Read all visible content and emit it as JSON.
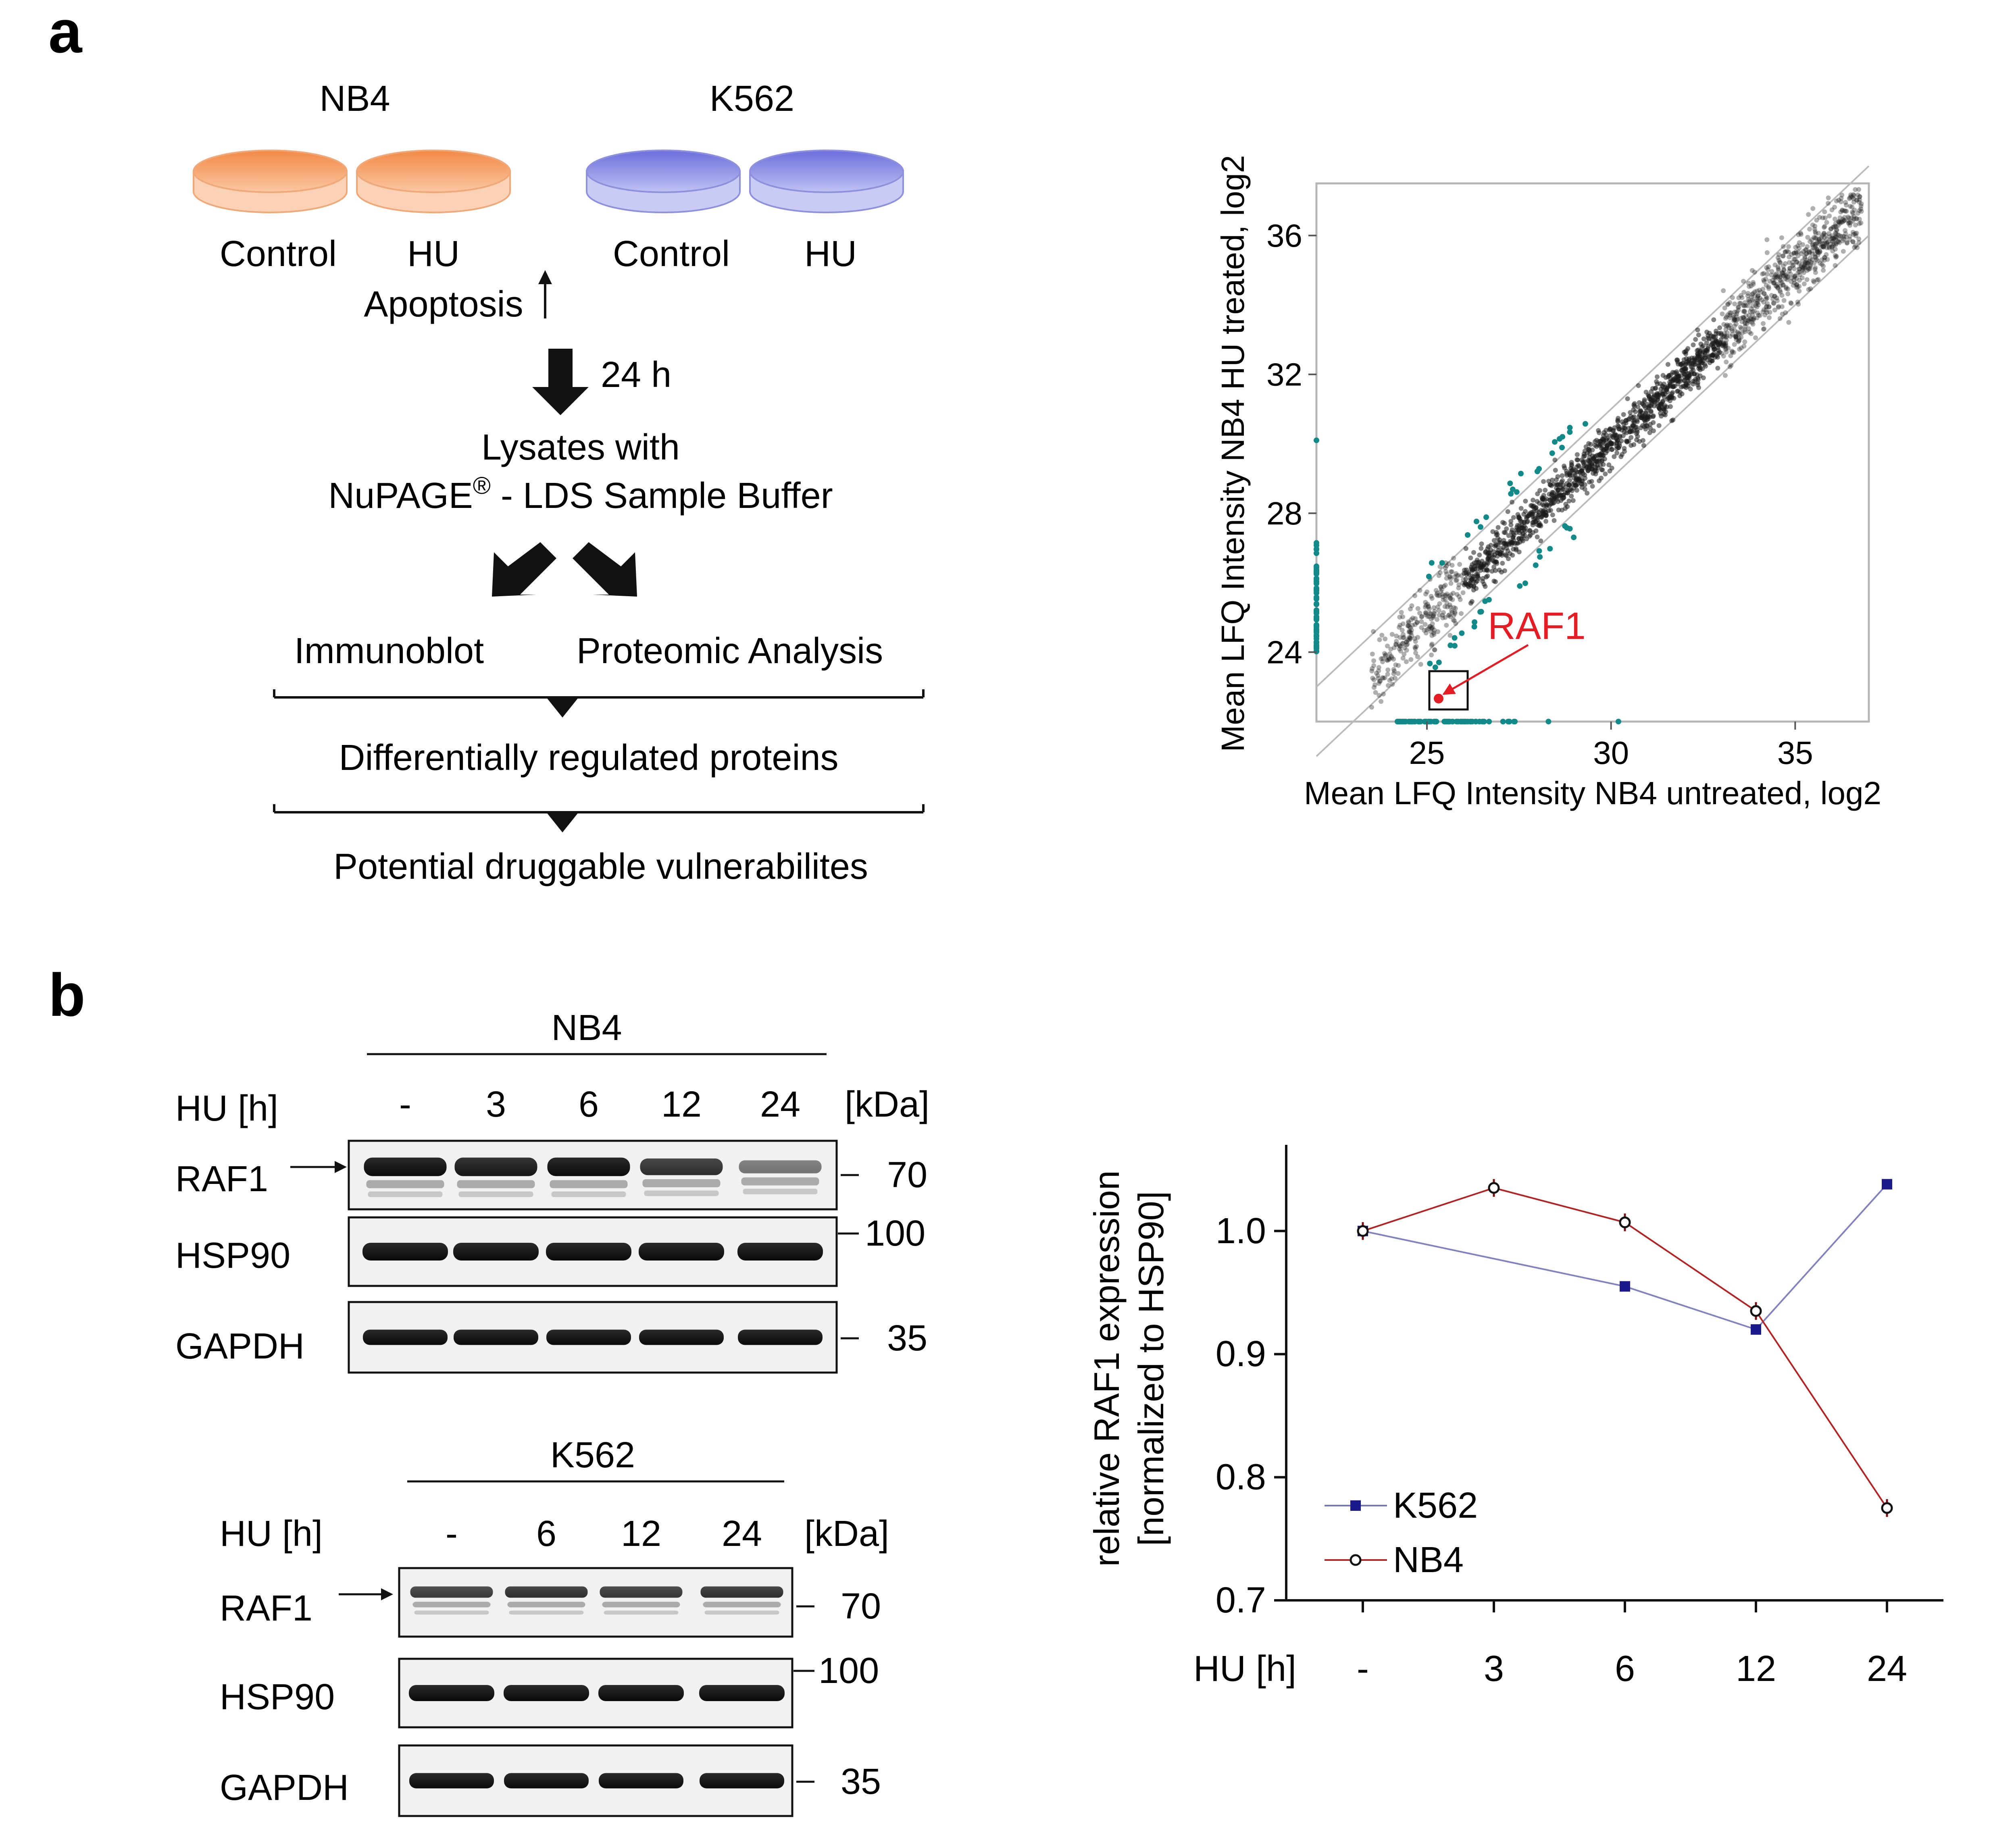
{
  "panel_a": {
    "label": "a",
    "workflow": {
      "cell_lines": [
        "NB4",
        "K562"
      ],
      "conditions": [
        "Control",
        "HU",
        "Control",
        "HU"
      ],
      "apoptosis": "Apoptosis",
      "duration": "24 h",
      "lysates_line1": "Lysates with",
      "lysates_line2": "NuPAGE",
      "lysates_reg": "®",
      "lysates_line2_end": " - LDS Sample Buffer",
      "branch_left": "Immunoblot",
      "branch_right": "Proteomic Analysis",
      "step1": "Differentially regulated proteins",
      "step2": "Potential druggable vulnerabilites"
    },
    "colors": {
      "nb4_dish": "#f59a5e",
      "k562_dish": "#7a7ee0",
      "outlier": "#138a8a",
      "highlight": "#e41c23"
    },
    "scatter": {
      "xlabel": "Mean LFQ Intensity NB4 untreated, log2",
      "ylabel": "Mean LFQ Intensity NB4 HU treated, log2",
      "annotation": "RAF1"
    }
  },
  "panel_b": {
    "label": "b",
    "nb4_blot": {
      "title": "NB4",
      "hu_label": "HU [h]",
      "lanes": [
        "-",
        "3",
        "6",
        "12",
        "24"
      ],
      "kda_label": "[kDa]",
      "rows": [
        {
          "name": "RAF1",
          "kda": "70"
        },
        {
          "name": "HSP90",
          "kda": "100"
        },
        {
          "name": "GAPDH",
          "kda": "35"
        }
      ]
    },
    "k562_blot": {
      "title": "K562",
      "hu_label": "HU [h]",
      "lanes": [
        "-",
        "6",
        "12",
        "24"
      ],
      "kda_label": "[kDa]",
      "rows": [
        {
          "name": "RAF1",
          "kda": "70"
        },
        {
          "name": "HSP90",
          "kda": "100"
        },
        {
          "name": "GAPDH",
          "kda": "35"
        }
      ]
    },
    "colors": {
      "k562": "#1a1a8c",
      "nb4": "#b22222"
    }
  },
  "chart_data": [
    {
      "type": "scatter",
      "xlabel": "Mean LFQ Intensity NB4 untreated, log2",
      "ylabel": "Mean LFQ Intensity NB4 HU treated, log2",
      "xlim": [
        22,
        37
      ],
      "ylim": [
        22,
        37.5
      ],
      "x_ticks": [
        25,
        30,
        35
      ],
      "y_ticks": [
        24,
        28,
        32,
        36
      ],
      "diagonal_band": 1.0,
      "main_cloud": {
        "x_range": [
          23.5,
          36.8
        ],
        "spread": 0.4,
        "approx_points": 2000
      },
      "outliers_missing_treated": {
        "y": 22,
        "x_range": [
          24.2,
          30.2
        ]
      },
      "outliers_missing_untreated": {
        "x": 22,
        "y_range": [
          24,
          30
        ]
      },
      "highlight": {
        "name": "RAF1",
        "x": 25,
        "y": 22
      },
      "grid": false
    },
    {
      "type": "line",
      "categories": [
        "-",
        "3",
        "6",
        "12",
        "24"
      ],
      "xlabel": "HU [h]",
      "ylabel": "relative RAF1 expression [normalized to HSP90]",
      "ylim": [
        0.7,
        1.07
      ],
      "y_ticks": [
        "0.7",
        "0.8",
        "0.9",
        "1.0"
      ],
      "legend_position": "bottom-left",
      "series": [
        {
          "name": "K562",
          "marker": "square",
          "values": [
            1.0,
            null,
            0.955,
            0.92,
            1.038
          ]
        },
        {
          "name": "NB4",
          "marker": "circle",
          "values": [
            1.0,
            1.035,
            1.007,
            0.935,
            0.775
          ]
        }
      ]
    }
  ]
}
